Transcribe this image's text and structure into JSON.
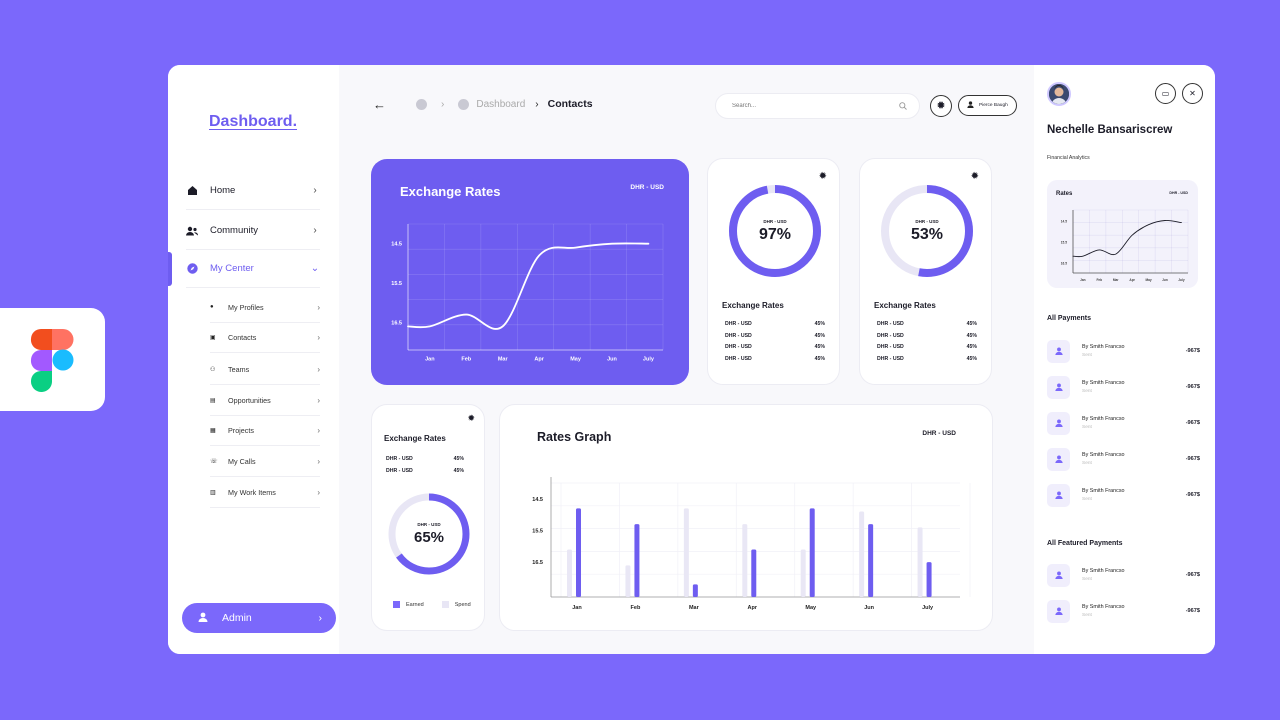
{
  "app": {
    "logo": "Dashboard."
  },
  "sidebar": {
    "items": [
      {
        "label": "Home",
        "icon": "home-icon"
      },
      {
        "label": "Community",
        "icon": "users-icon"
      },
      {
        "label": "My Center",
        "icon": "compass-icon"
      }
    ],
    "sub_items": [
      {
        "label": "My Profiles",
        "icon": "user-icon"
      },
      {
        "label": "Contacts",
        "icon": "contact-card-icon"
      },
      {
        "label": "Teams",
        "icon": "team-icon"
      },
      {
        "label": "Opportunities",
        "icon": "document-icon"
      },
      {
        "label": "Projects",
        "icon": "briefcase-icon"
      },
      {
        "label": "My Calls",
        "icon": "phone-icon"
      },
      {
        "label": "My Work Items",
        "icon": "folder-icon"
      }
    ],
    "admin_label": "Admin"
  },
  "header": {
    "breadcrumb": {
      "parent": "Dashboard",
      "current": "Contacts"
    },
    "search_placeholder": "Search...",
    "user_name": "Pierce Baugh"
  },
  "exchange_card": {
    "title": "Exchange Rates",
    "pair": "DHR - USD"
  },
  "donut_cards": [
    {
      "pair": "DHR - USD",
      "percent": 97,
      "percent_label": "97%",
      "title": "Exchange Rates",
      "rows": [
        {
          "pair": "DHR - USD",
          "value": "45%"
        },
        {
          "pair": "DHR - USD",
          "value": "45%"
        },
        {
          "pair": "DHR - USD",
          "value": "45%"
        },
        {
          "pair": "DHR - USD",
          "value": "45%"
        }
      ]
    },
    {
      "pair": "DHR - USD",
      "percent": 53,
      "percent_label": "53%",
      "title": "Exchange Rates",
      "rows": [
        {
          "pair": "DHR - USD",
          "value": "45%"
        },
        {
          "pair": "DHR - USD",
          "value": "45%"
        },
        {
          "pair": "DHR - USD",
          "value": "45%"
        },
        {
          "pair": "DHR - USD",
          "value": "45%"
        }
      ]
    }
  ],
  "small_card": {
    "title": "Exchange Rates",
    "rows": [
      {
        "pair": "DHR - USD",
        "value": "45%"
      },
      {
        "pair": "DHR - USD",
        "value": "45%"
      }
    ],
    "pair": "DHR - USD",
    "percent": 65,
    "percent_label": "65%",
    "legend": [
      {
        "label": "Earned",
        "color": "#7b68fb"
      },
      {
        "label": "Spend",
        "color": "#e8e6f5"
      }
    ]
  },
  "graph_card": {
    "title": "Rates Graph",
    "pair": "DHR - USD"
  },
  "profile": {
    "name": "Nechelle Bansariscrew",
    "role": "Financial Analytics",
    "mini_chart_title": "Rates",
    "mini_chart_pair": "DHR - USD"
  },
  "payments": {
    "title": "All Payments",
    "items": [
      {
        "name": "By Smith Francso",
        "status": "Sent",
        "amount": "-967$"
      },
      {
        "name": "By Smith Francso",
        "status": "Sent",
        "amount": "-967$"
      },
      {
        "name": "By Smith Francso",
        "status": "Sent",
        "amount": "-967$"
      },
      {
        "name": "By Smith Francso",
        "status": "Sent",
        "amount": "-967$"
      },
      {
        "name": "By Smith Francso",
        "status": "Sent",
        "amount": "-967$"
      }
    ]
  },
  "featured_payments": {
    "title": "All Featured Payments",
    "items": [
      {
        "name": "By Smith Francso",
        "status": "Sent",
        "amount": "-967$"
      },
      {
        "name": "By Smith Francso",
        "status": "Sent",
        "amount": "-967$"
      }
    ]
  },
  "colors": {
    "accent": "#7b68fb",
    "accent_dark": "#6e5df0",
    "track": "#e8e6f5"
  },
  "chart_data": [
    {
      "type": "line",
      "categories": [
        "Jan",
        "Feb",
        "Mar",
        "Apr",
        "May",
        "Jun",
        "July"
      ],
      "values": [
        16.6,
        16.3,
        16.6,
        14.8,
        14.6,
        14.5,
        14.5
      ],
      "yticks": [
        "14.5",
        "15.5",
        "16.5"
      ],
      "ylim": [
        14.0,
        17.2
      ],
      "grid": true
    },
    {
      "type": "bar",
      "categories": [
        "Jan",
        "Feb",
        "Mar",
        "Apr",
        "May",
        "Jun",
        "July"
      ],
      "series": [
        {
          "values": [
            16.1,
            16.6,
            14.8,
            15.3,
            16.1,
            14.9,
            15.4
          ]
        },
        {
          "values": [
            14.8,
            15.3,
            17.2,
            16.1,
            14.8,
            15.3,
            16.5
          ]
        }
      ],
      "yticks": [
        "14.5",
        "15.5",
        "16.5"
      ],
      "ylim": [
        14.0,
        17.6
      ],
      "grid": true
    },
    {
      "type": "line",
      "categories": [
        "Jan",
        "Feb",
        "Mar",
        "Apr",
        "May",
        "Jun",
        "July"
      ],
      "values": [
        16.2,
        15.9,
        16.1,
        15.2,
        14.7,
        14.5,
        14.6
      ],
      "yticks": [
        "14.5",
        "15.5",
        "16.5"
      ],
      "ylim": [
        14.0,
        17.0
      ],
      "grid": true
    }
  ]
}
